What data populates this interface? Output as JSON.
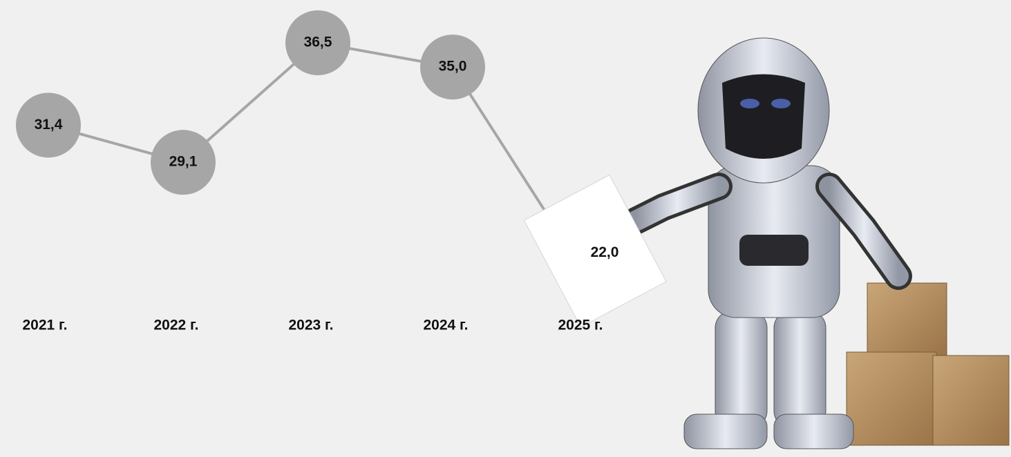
{
  "chart_data": {
    "type": "line",
    "categories": [
      "2021 г.",
      "2022 г.",
      "2023 г.",
      "2024 г.",
      "2025 г."
    ],
    "values": [
      31.4,
      29.1,
      36.5,
      35.0,
      22.0
    ],
    "value_labels": [
      "31,4",
      "29,1",
      "36,5",
      "35,0",
      "22,0"
    ],
    "color": "#a6a6a6"
  }
}
